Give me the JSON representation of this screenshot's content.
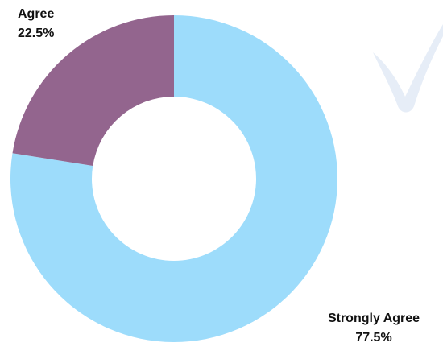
{
  "chart_data": {
    "type": "pie",
    "donut": true,
    "categories": [
      "Strongly Agree",
      "Agree"
    ],
    "values": [
      77.5,
      22.5
    ],
    "value_labels": [
      "77.5%",
      "22.5%"
    ],
    "colors": [
      "#9ddcfb",
      "#93658e"
    ],
    "title": "",
    "watermark_color": "#e6edf7"
  }
}
